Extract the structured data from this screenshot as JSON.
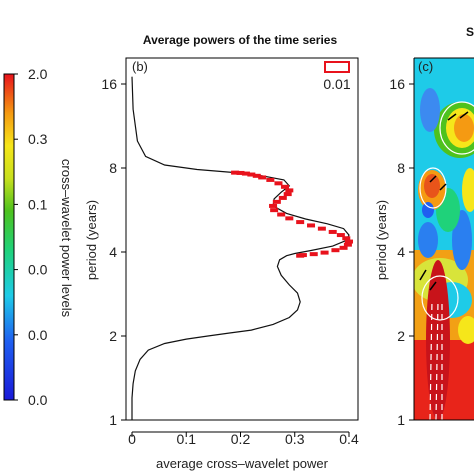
{
  "left_panel": {
    "colorbar": {
      "tick_labels": [
        "2.0",
        "0.3",
        "0.1",
        "0.0",
        "0.0",
        "0.0"
      ],
      "label": "cross–wavelet power levels"
    }
  },
  "middle_panel": {
    "title": "Average powers of the time series",
    "panel_letter": "(b)",
    "legend_label": "0.01",
    "xlabel": "average cross–wavelet power",
    "ylabel": "period (years)",
    "x_tick_labels": [
      "0",
      "0.1",
      "0.2",
      "0.3",
      "0.4"
    ],
    "y_tick_labels": [
      "1",
      "2",
      "4",
      "8",
      "16"
    ]
  },
  "right_panel": {
    "title_fragment": "S",
    "panel_letter": "(c)",
    "ylabel": "period (years)",
    "y_tick_labels": [
      "1",
      "2",
      "4",
      "8",
      "16"
    ]
  },
  "colors": {
    "curve": "#111111",
    "significant": "#e8121c",
    "legend_box": "#e8121c"
  },
  "chart_data": {
    "type": "line",
    "title": "Average powers of the time series",
    "xlabel": "average cross–wavelet power",
    "ylabel": "period (years)",
    "xlim": [
      0,
      0.42
    ],
    "ylim": [
      1,
      19
    ],
    "y_scale": "log2",
    "grid": false,
    "legend": {
      "label": "0.01",
      "placement": "top-right"
    },
    "series": [
      {
        "x": [
          0.0,
          0.0,
          0.002,
          0.006,
          0.015,
          0.03,
          0.06,
          0.1,
          0.14,
          0.18,
          0.22,
          0.26,
          0.29,
          0.305,
          0.31,
          0.305,
          0.29,
          0.275,
          0.268,
          0.272,
          0.285,
          0.3,
          0.33,
          0.37,
          0.395,
          0.4,
          0.39,
          0.36,
          0.32,
          0.285,
          0.26,
          0.262,
          0.275,
          0.29,
          0.28,
          0.24,
          0.19,
          0.12,
          0.06,
          0.025,
          0.01,
          0.002,
          0.0
        ],
        "y": [
          1.0,
          1.2,
          1.35,
          1.5,
          1.65,
          1.78,
          1.88,
          1.95,
          2.0,
          2.05,
          2.1,
          2.2,
          2.33,
          2.48,
          2.65,
          2.85,
          3.05,
          3.3,
          3.55,
          3.75,
          3.88,
          3.95,
          4.05,
          4.2,
          4.4,
          4.6,
          4.85,
          5.05,
          5.25,
          5.5,
          5.85,
          6.2,
          6.55,
          6.9,
          7.25,
          7.5,
          7.7,
          7.9,
          8.2,
          8.8,
          10.0,
          13.0,
          17.0
        ]
      }
    ],
    "significant_points": {
      "x": [
        0.19,
        0.2,
        0.21,
        0.22,
        0.23,
        0.24,
        0.255,
        0.27,
        0.282,
        0.29,
        0.287,
        0.278,
        0.267,
        0.26,
        0.262,
        0.275,
        0.29,
        0.31,
        0.33,
        0.35,
        0.37,
        0.385,
        0.395,
        0.4,
        0.398,
        0.39,
        0.375,
        0.355,
        0.335,
        0.315,
        0.31
      ],
      "y": [
        7.7,
        7.68,
        7.64,
        7.58,
        7.5,
        7.4,
        7.25,
        7.05,
        6.85,
        6.65,
        6.45,
        6.25,
        6.05,
        5.85,
        5.65,
        5.45,
        5.28,
        5.12,
        4.98,
        4.85,
        4.72,
        4.6,
        4.48,
        4.36,
        4.25,
        4.14,
        4.06,
        3.98,
        3.93,
        3.9,
        3.88
      ]
    }
  }
}
